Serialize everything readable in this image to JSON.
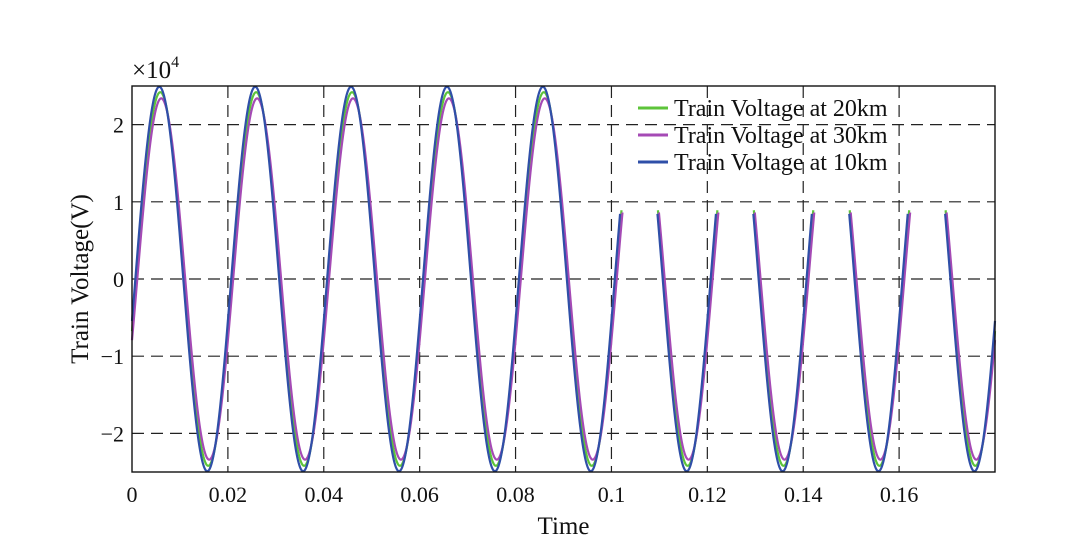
{
  "chart_data": {
    "type": "line",
    "title": "",
    "xlabel": "Time",
    "ylabel": "Train Voltage(V)",
    "y_exponent_label": "×10",
    "y_exponent_power": "4",
    "xlim": [
      0,
      0.18
    ],
    "ylim": [
      -25000,
      25000
    ],
    "x_ticks": [
      0,
      0.02,
      0.04,
      0.06,
      0.08,
      0.1,
      0.12,
      0.14,
      0.16
    ],
    "x_tick_labels": [
      "0",
      "0.02",
      "0.04",
      "0.06",
      "0.08",
      "0.1",
      "0.12",
      "0.14",
      "0.16"
    ],
    "y_ticks": [
      -20000,
      -10000,
      0,
      10000,
      20000
    ],
    "y_tick_labels": [
      "−2",
      "−1",
      "0",
      "1",
      "2"
    ],
    "grid": true,
    "legend_position": "top-right",
    "frequency_hz": 50,
    "clipped_after_x": 0.1,
    "clip_upper_value": 9000,
    "series": [
      {
        "name": "Train Voltage at 20km",
        "color": "#5dc43a",
        "amplitude": 24200,
        "phase_shift_s": 0.0002
      },
      {
        "name": "Train Voltage at 30km",
        "color": "#a54ab5",
        "amplitude": 23400,
        "phase_shift_s": 0.0004
      },
      {
        "name": "Train Voltage at 10km",
        "color": "#2f4fa8",
        "amplitude": 24900,
        "phase_shift_s": 0.0
      }
    ]
  }
}
